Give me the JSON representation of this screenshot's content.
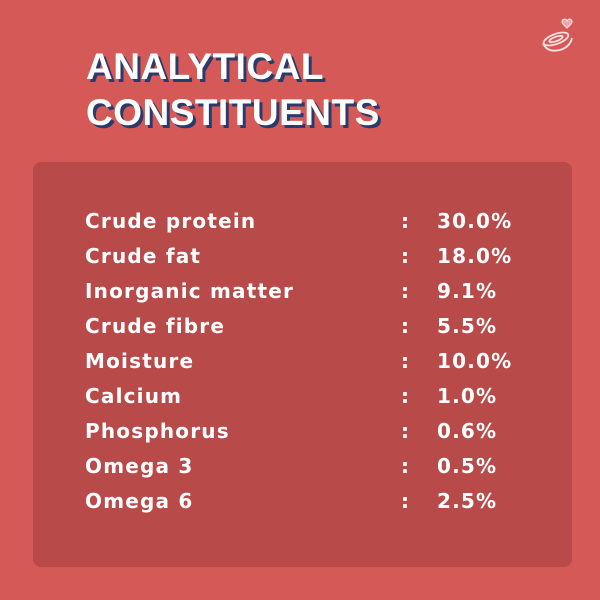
{
  "title": [
    "ANALYTICAL",
    "CONSTITUENTS"
  ],
  "table": {
    "rows": [
      [
        "Crude protein",
        ":",
        "30.0%"
      ],
      [
        "Crude fat",
        ":",
        "18.0%"
      ],
      [
        "Inorganic matter",
        ":",
        "9.1%"
      ],
      [
        "Crude fibre",
        ":",
        "5.5%"
      ],
      [
        "Moisture",
        ":",
        "10.0%"
      ],
      [
        "Calcium",
        ":",
        "1.0%"
      ],
      [
        "Phosphorus",
        ":",
        "0.6%"
      ],
      [
        "Omega 3",
        ":",
        "0.5%"
      ],
      [
        "Omega 6",
        ":",
        "2.5%"
      ]
    ]
  }
}
